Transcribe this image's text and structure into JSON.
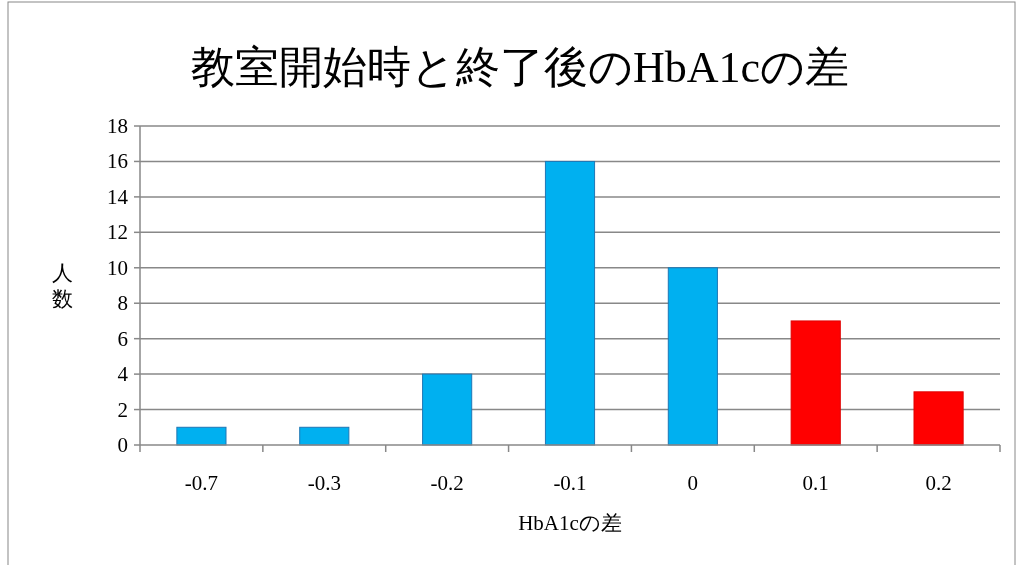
{
  "chart_data": {
    "type": "bar",
    "title": "教室開始時と終了後のHbA1cの差",
    "xlabel": "HbA1cの差",
    "ylabel": "人数",
    "categories": [
      "-0.7",
      "-0.3",
      "-0.2",
      "-0.1",
      "0",
      "0.1",
      "0.2"
    ],
    "values": [
      1,
      1,
      4,
      16,
      10,
      7,
      3
    ],
    "colors": [
      "#00b0f0",
      "#00b0f0",
      "#00b0f0",
      "#00b0f0",
      "#00b0f0",
      "#ff0000",
      "#ff0000"
    ],
    "ylim": [
      0,
      18
    ],
    "yticks": [
      0,
      2,
      4,
      6,
      8,
      10,
      12,
      14,
      16,
      18
    ],
    "grid": "y"
  }
}
